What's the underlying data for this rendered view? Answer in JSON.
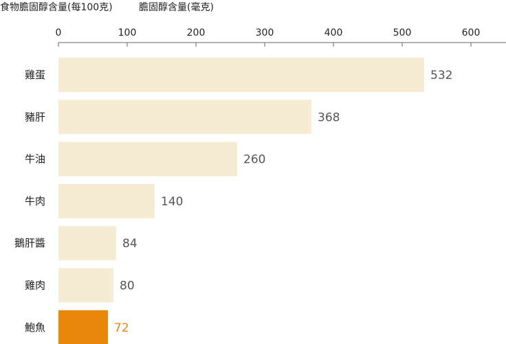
{
  "chart_data": {
    "type": "bar",
    "orientation": "horizontal",
    "title": "食物膽固醇含量(每100克)",
    "subtitle": "膽固醇含量(毫克)",
    "categories": [
      "雞蛋",
      "豬肝",
      "牛油",
      "牛肉",
      "鵝肝醬",
      "雞肉",
      "鮑魚"
    ],
    "values": [
      532,
      368,
      260,
      140,
      84,
      80,
      72
    ],
    "highlight_category": "鮑魚",
    "xticks": [
      0,
      100,
      200,
      300,
      400,
      500,
      600
    ],
    "xlim": [
      0,
      650
    ],
    "grid": false,
    "colors": {
      "bar": "#f6ebd3",
      "highlight": "#e8870a",
      "label": "#555555",
      "highlight_label": "#e8870a",
      "axis": "#666666",
      "text": "#222222"
    }
  }
}
